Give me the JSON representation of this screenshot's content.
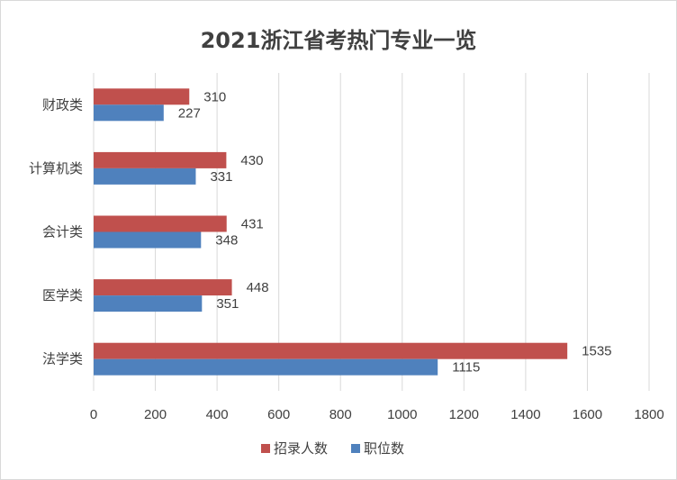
{
  "chart_data": {
    "type": "bar",
    "orientation": "horizontal",
    "title": "2021浙江省考热门专业一览",
    "categories": [
      "财政类",
      "计算机类",
      "会计类",
      "医学类",
      "法学类"
    ],
    "series": [
      {
        "name": "招录人数",
        "color": "#c0504d",
        "values": [
          310,
          430,
          431,
          448,
          1535
        ]
      },
      {
        "name": "职位数",
        "color": "#4f81bd",
        "values": [
          227,
          331,
          348,
          351,
          1115
        ]
      }
    ],
    "xlim": [
      0,
      1800
    ],
    "xticks": [
      "0",
      "200",
      "400",
      "600",
      "800",
      "1000",
      "1200",
      "1400",
      "1600",
      "1800"
    ],
    "grid": true,
    "legend_position": "bottom",
    "data_labels": true
  }
}
